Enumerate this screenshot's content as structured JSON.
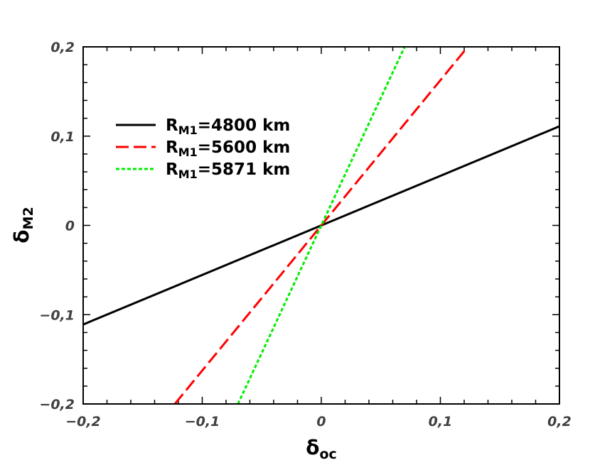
{
  "chart_data": {
    "type": "line",
    "xlabel": {
      "base": "δ",
      "sub": "oc"
    },
    "ylabel": {
      "base": "δ",
      "sub": "M2"
    },
    "xlim": [
      -0.2,
      0.2
    ],
    "ylim": [
      -0.2,
      0.2
    ],
    "xticks": [
      -0.2,
      -0.1,
      0,
      0.1,
      0.2
    ],
    "yticks": [
      -0.2,
      -0.1,
      0,
      0.1,
      0.2
    ],
    "xtick_labels": [
      "−0,2",
      "−0,1",
      "0",
      "0,1",
      "0,2"
    ],
    "ytick_labels": [
      "−0,2",
      "−0,1",
      "0",
      "0,1",
      "0,2"
    ],
    "grid": false,
    "legend_position": "upper-left",
    "series": [
      {
        "name": {
          "pre": "R",
          "sub": "M1",
          "post": "=4800 km"
        },
        "color": "#000000",
        "style": "solid",
        "x": [
          -0.2,
          0.2
        ],
        "y": [
          -0.111,
          0.111
        ]
      },
      {
        "name": {
          "pre": "R",
          "sub": "M1",
          "post": "=5600 km"
        },
        "color": "#ff0000",
        "style": "dashed",
        "x": [
          -0.123,
          0.123
        ],
        "y": [
          -0.2,
          0.2
        ]
      },
      {
        "name": {
          "pre": "R",
          "sub": "M1",
          "post": "=5871 km"
        },
        "color": "#00ee00",
        "style": "dotted",
        "x": [
          -0.07,
          0.07
        ],
        "y": [
          -0.2,
          0.2
        ]
      }
    ]
  }
}
